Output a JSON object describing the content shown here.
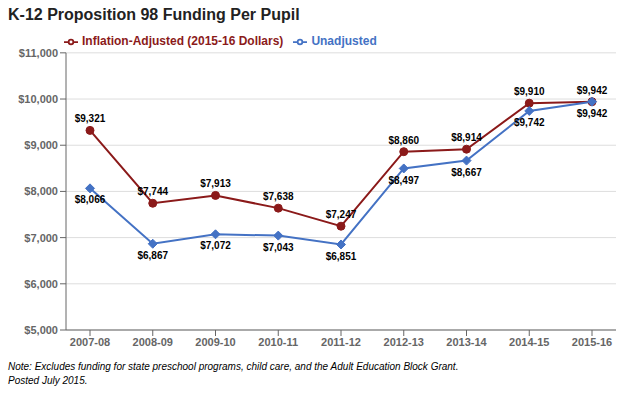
{
  "chart_data": {
    "type": "line",
    "title": "K-12 Proposition 98 Funding Per Pupil",
    "categories": [
      "2007-08",
      "2008-09",
      "2009-10",
      "2010-11",
      "2011-12",
      "2012-13",
      "2013-14",
      "2014-15",
      "2015-16"
    ],
    "series": [
      {
        "name": "Inflation-Adjusted (2015-16 Dollars)",
        "color": "#8B1A1A",
        "marker": "circle",
        "values": [
          9321,
          7744,
          7913,
          7638,
          7247,
          8860,
          8914,
          9910,
          9942
        ],
        "value_labels": [
          "$9,321",
          "$7,744",
          "$7,913",
          "$7,638",
          "$7,247",
          "$8,860",
          "$8,914",
          "$9,910",
          "$9,942"
        ]
      },
      {
        "name": "Unadjusted",
        "color": "#4472C4",
        "marker": "diamond",
        "values": [
          8066,
          6867,
          7072,
          7043,
          6851,
          8497,
          8667,
          9742,
          9942
        ],
        "value_labels": [
          "$8,066",
          "$6,867",
          "$7,072",
          "$7,043",
          "$6,851",
          "$8,497",
          "$8,667",
          "$9,742",
          "$9,942"
        ]
      }
    ],
    "ylim": [
      5000,
      11000
    ],
    "yticks": [
      {
        "value": 5000,
        "label": "$5,000"
      },
      {
        "value": 6000,
        "label": "$6,000"
      },
      {
        "value": 7000,
        "label": "$7,000"
      },
      {
        "value": 8000,
        "label": "$8,000"
      },
      {
        "value": 9000,
        "label": "$9,000"
      },
      {
        "value": 10000,
        "label": "$10,000"
      },
      {
        "value": 11000,
        "label": "$11,000"
      }
    ],
    "grid": true,
    "legend": "top",
    "data_labels": true,
    "annotations": [
      "Note: Excludes funding for state preschool programs, child care, and the Adult Education Block Grant.",
      "Posted July 2015."
    ]
  }
}
